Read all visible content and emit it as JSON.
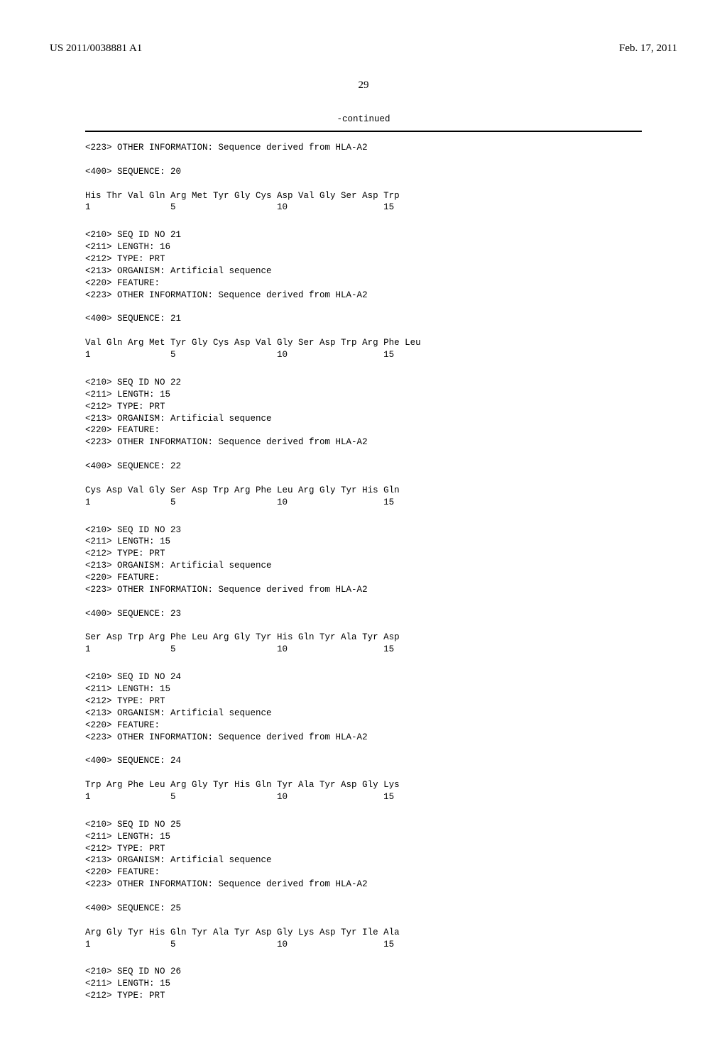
{
  "header": {
    "publication_id": "US 2011/0038881 A1",
    "publication_date": "Feb. 17, 2011"
  },
  "page_number": "29",
  "continued_label": "-continued",
  "blocks": [
    {
      "lines": [
        "<223> OTHER INFORMATION: Sequence derived from HLA-A2",
        "",
        "<400> SEQUENCE: 20",
        "",
        "His Thr Val Gln Arg Met Tyr Gly Cys Asp Val Gly Ser Asp Trp",
        "1               5                   10                  15"
      ]
    },
    {
      "lines": [
        "<210> SEQ ID NO 21",
        "<211> LENGTH: 16",
        "<212> TYPE: PRT",
        "<213> ORGANISM: Artificial sequence",
        "<220> FEATURE:",
        "<223> OTHER INFORMATION: Sequence derived from HLA-A2",
        "",
        "<400> SEQUENCE: 21",
        "",
        "Val Gln Arg Met Tyr Gly Cys Asp Val Gly Ser Asp Trp Arg Phe Leu",
        "1               5                   10                  15"
      ]
    },
    {
      "lines": [
        "<210> SEQ ID NO 22",
        "<211> LENGTH: 15",
        "<212> TYPE: PRT",
        "<213> ORGANISM: Artificial sequence",
        "<220> FEATURE:",
        "<223> OTHER INFORMATION: Sequence derived from HLA-A2",
        "",
        "<400> SEQUENCE: 22",
        "",
        "Cys Asp Val Gly Ser Asp Trp Arg Phe Leu Arg Gly Tyr His Gln",
        "1               5                   10                  15"
      ]
    },
    {
      "lines": [
        "<210> SEQ ID NO 23",
        "<211> LENGTH: 15",
        "<212> TYPE: PRT",
        "<213> ORGANISM: Artificial sequence",
        "<220> FEATURE:",
        "<223> OTHER INFORMATION: Sequence derived from HLA-A2",
        "",
        "<400> SEQUENCE: 23",
        "",
        "Ser Asp Trp Arg Phe Leu Arg Gly Tyr His Gln Tyr Ala Tyr Asp",
        "1               5                   10                  15"
      ]
    },
    {
      "lines": [
        "<210> SEQ ID NO 24",
        "<211> LENGTH: 15",
        "<212> TYPE: PRT",
        "<213> ORGANISM: Artificial sequence",
        "<220> FEATURE:",
        "<223> OTHER INFORMATION: Sequence derived from HLA-A2",
        "",
        "<400> SEQUENCE: 24",
        "",
        "Trp Arg Phe Leu Arg Gly Tyr His Gln Tyr Ala Tyr Asp Gly Lys",
        "1               5                   10                  15"
      ]
    },
    {
      "lines": [
        "<210> SEQ ID NO 25",
        "<211> LENGTH: 15",
        "<212> TYPE: PRT",
        "<213> ORGANISM: Artificial sequence",
        "<220> FEATURE:",
        "<223> OTHER INFORMATION: Sequence derived from HLA-A2",
        "",
        "<400> SEQUENCE: 25",
        "",
        "Arg Gly Tyr His Gln Tyr Ala Tyr Asp Gly Lys Asp Tyr Ile Ala",
        "1               5                   10                  15"
      ]
    },
    {
      "lines": [
        "<210> SEQ ID NO 26",
        "<211> LENGTH: 15",
        "<212> TYPE: PRT"
      ]
    }
  ]
}
